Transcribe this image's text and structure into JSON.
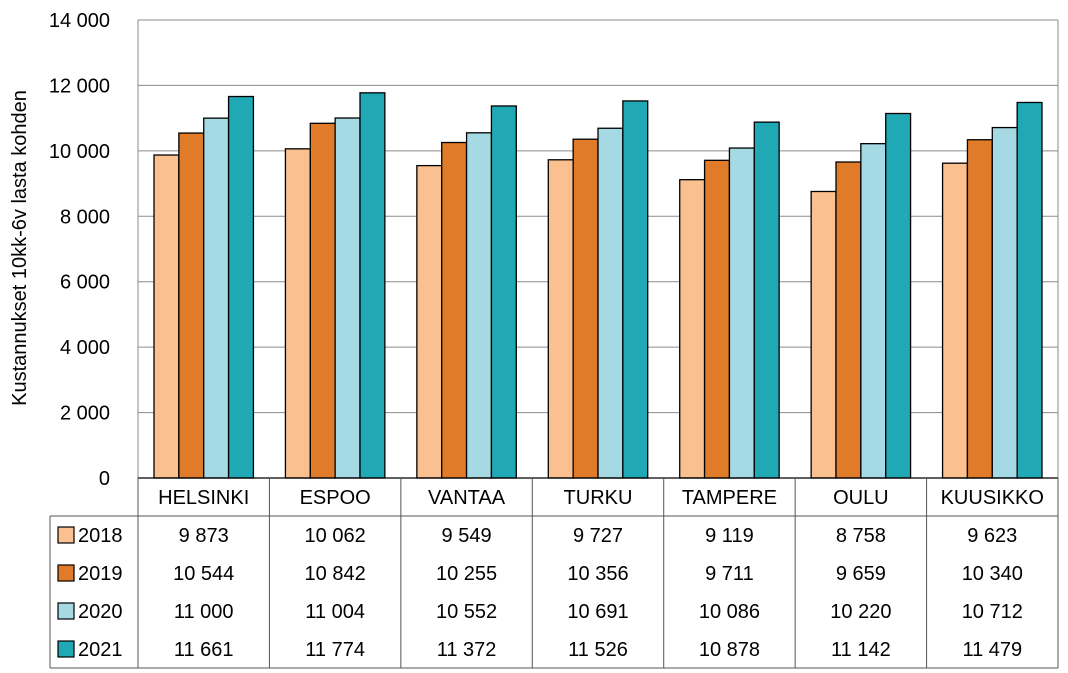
{
  "chart_data": {
    "type": "bar",
    "title": "",
    "xlabel": "",
    "ylabel": "Kustannukset 10kk-6v lasta kohden",
    "ylim": [
      0,
      14000
    ],
    "yticks": [
      0,
      2000,
      4000,
      6000,
      8000,
      10000,
      12000,
      14000
    ],
    "ytick_labels": [
      "0",
      "2 000",
      "4 000",
      "6 000",
      "8 000",
      "10 000",
      "12 000",
      "14 000"
    ],
    "grid": true,
    "legend": "data-table",
    "categories": [
      "HELSINKI",
      "ESPOO",
      "VANTAA",
      "TURKU",
      "TAMPERE",
      "OULU",
      "KUUSIKKO"
    ],
    "series": [
      {
        "name": "2018",
        "color": "#FAC090",
        "values": [
          9873,
          10062,
          9549,
          9727,
          9119,
          8758,
          9623
        ],
        "labels": [
          "9 873",
          "10 062",
          "9 549",
          "9 727",
          "9 119",
          "8 758",
          "9 623"
        ]
      },
      {
        "name": "2019",
        "color": "#E07B2A",
        "values": [
          10544,
          10842,
          10255,
          10356,
          9711,
          9659,
          10340
        ],
        "labels": [
          "10 544",
          "10 842",
          "10 255",
          "10 356",
          "9 711",
          "9 659",
          "10 340"
        ]
      },
      {
        "name": "2020",
        "color": "#A5D9E4",
        "values": [
          11000,
          11004,
          10552,
          10691,
          10086,
          10220,
          10712
        ],
        "labels": [
          "11 000",
          "11 004",
          "10 552",
          "10 691",
          "10 086",
          "10 220",
          "10 712"
        ]
      },
      {
        "name": "2021",
        "color": "#20A8B5",
        "values": [
          11661,
          11774,
          11372,
          11526,
          10878,
          11142,
          11479
        ],
        "labels": [
          "11 661",
          "11 774",
          "11 372",
          "11 526",
          "10 878",
          "11 142",
          "11 479"
        ]
      }
    ]
  }
}
